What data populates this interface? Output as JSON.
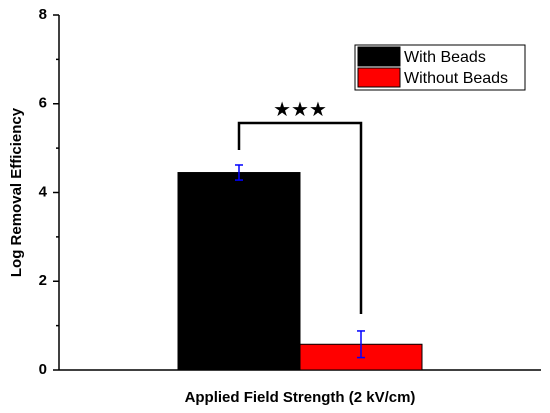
{
  "chart_data": {
    "type": "bar",
    "title": "",
    "xlabel": "Applied Field Strength (2 kV/cm)",
    "ylabel": "Log Removal Efficiency",
    "ylim": [
      0,
      8
    ],
    "yticks": [
      "0",
      "2",
      "4",
      "6",
      "8"
    ],
    "grid": false,
    "legend_position": "top-right",
    "categories": [
      "Applied Field Strength (2 kV/cm)"
    ],
    "series": [
      {
        "name": "With Beads",
        "values": [
          4.45
        ],
        "error": [
          0.17
        ],
        "color": "#000000"
      },
      {
        "name": "Without Beads",
        "values": [
          0.58
        ],
        "error": [
          0.3
        ],
        "color": "#ff0000"
      }
    ],
    "error_bar_color": "#0000ff",
    "annotation": "★★★"
  }
}
